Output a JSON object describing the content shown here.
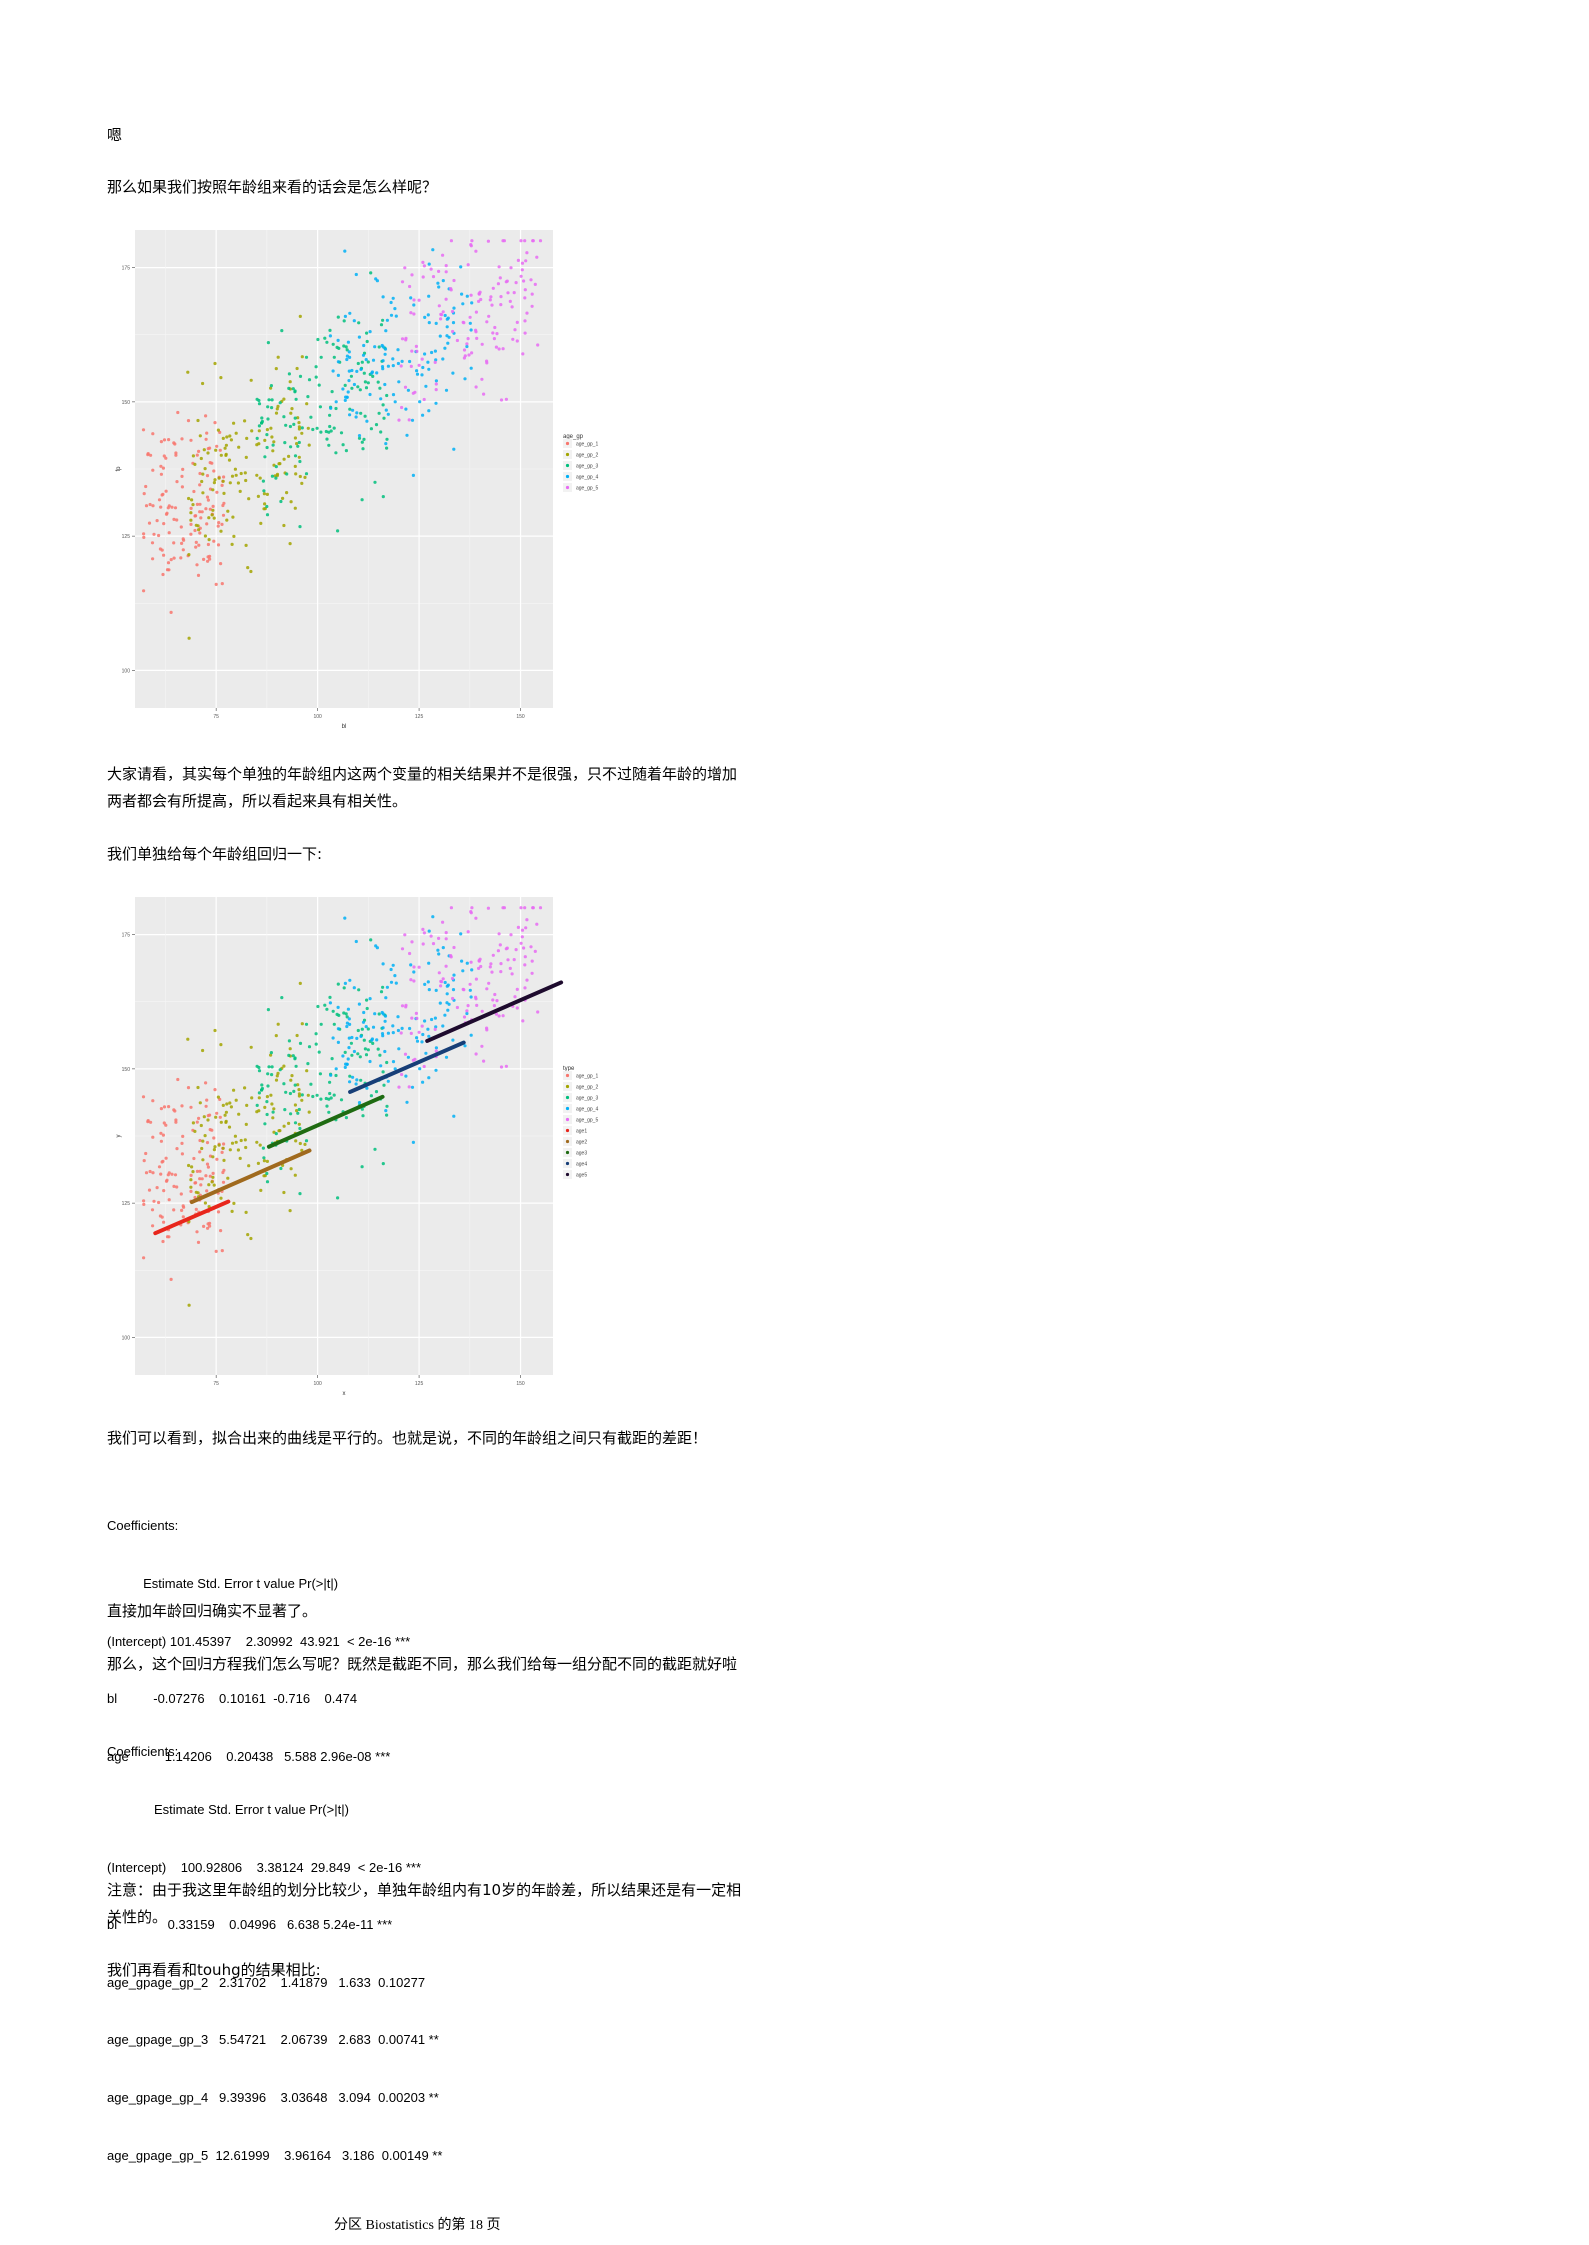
{
  "paragraphs": {
    "p1": "嗯",
    "p2": "那么如果我们按照年龄组来看的话会是怎么样呢？",
    "p3_line1": "大家请看，其实每个单独的年龄组内这两个变量的相关结果并不是很强，只不过随着年龄的增加",
    "p3_line2": "两者都会有所提高，所以看起来具有相关性。",
    "p4": "我们单独给每个年龄组回归一下:",
    "p5": "我们可以看到，拟合出来的曲线是平行的。也就是说，不同的年龄组之间只有截距的差距！",
    "p6": "直接加年龄回归确实不显著了。",
    "p7": "那么，这个回归方程我们怎么写呢？既然是截距不同，那么我们给每一组分配不同的截距就好啦",
    "p8_line1": "注意：由于我这里年龄组的划分比较少，单独年龄组内有10岁的年龄差，所以结果还是有一定相",
    "p8_line2": "关性的。",
    "p9": "我们再看看和touhg的结果相比:"
  },
  "coef1": [
    "Coefficients:",
    "          Estimate Std. Error t value Pr(>|t|)",
    "(Intercept) 101.45397    2.30992  43.921  < 2e-16 ***",
    "bl          -0.07276    0.10161  -0.716    0.474",
    "age          1.14206    0.20438   5.588 2.96e-08 ***"
  ],
  "coef2": [
    "Coefficients:",
    "             Estimate Std. Error t value Pr(>|t|)",
    "(Intercept)    100.92806    3.38124  29.849  < 2e-16 ***",
    "bl              0.33159    0.04996   6.638 5.24e-11 ***",
    "age_gpage_gp_2   2.31702    1.41879   1.633  0.10277",
    "age_gpage_gp_3   5.54721    2.06739   2.683  0.00741 **",
    "age_gpage_gp_4   9.39396    3.03648   3.094  0.00203 **",
    "age_gpage_gp_5  12.61999    3.96164   3.186  0.00149 **"
  ],
  "footer": "分区 Biostatistics 的第 18 页",
  "chart_data": [
    {
      "type": "scatter",
      "xlabel": "bl",
      "ylabel": "fp",
      "x_ticks": [
        "75",
        "100",
        "125",
        "150"
      ],
      "y_ticks": [
        "100",
        "125",
        "150",
        "175"
      ],
      "xlim": [
        55,
        158
      ],
      "ylim": [
        93,
        182
      ],
      "legend_title": "age_gp",
      "legend": [
        "age_gp_1",
        "age_gp_2",
        "age_gp_3",
        "age_gp_4",
        "age_gp_5"
      ],
      "legend_position": "right",
      "grid": true,
      "colors": [
        "#F8766D",
        "#A3A500",
        "#00BF7D",
        "#00B0F6",
        "#E76BF3"
      ],
      "groups": [
        {
          "name": "age_gp_1",
          "bl_range": [
            57,
            77
          ],
          "intercept": 101,
          "slope": 0.33
        },
        {
          "name": "age_gp_2",
          "bl_range": [
            68,
            98
          ],
          "intercept": 103.3,
          "slope": 0.33
        },
        {
          "name": "age_gp_3",
          "bl_range": [
            85,
            118
          ],
          "intercept": 106.5,
          "slope": 0.33
        },
        {
          "name": "age_gp_4",
          "bl_range": [
            103,
            138
          ],
          "intercept": 110.3,
          "slope": 0.33
        },
        {
          "name": "age_gp_5",
          "bl_range": [
            120,
            155
          ],
          "intercept": 113.5,
          "slope": 0.33
        }
      ]
    },
    {
      "type": "scatter",
      "xlabel": "x",
      "ylabel": "y",
      "x_ticks": [
        "75",
        "100",
        "125",
        "150"
      ],
      "y_ticks": [
        "100",
        "125",
        "150",
        "175"
      ],
      "xlim": [
        55,
        158
      ],
      "ylim": [
        93,
        182
      ],
      "legend_title": "type",
      "legend": [
        "age_gp_1",
        "age_gp_2",
        "age_gp_3",
        "age_gp_4",
        "age_gp_5",
        "age1",
        "age2",
        "age3",
        "age4",
        "age5"
      ],
      "legend_position": "right",
      "grid": true,
      "colors": [
        "#F8766D",
        "#A3A500",
        "#00BF7D",
        "#00B0F6",
        "#E76BF3"
      ],
      "line_colors": [
        "#E8261C",
        "#A06A1E",
        "#1F6B12",
        "#173E77",
        "#1E0B2E"
      ],
      "fit_lines": [
        {
          "name": "age1",
          "x": [
            60,
            78
          ],
          "y": [
            119.4,
            125.3
          ]
        },
        {
          "name": "age2",
          "x": [
            69,
            98
          ],
          "y": [
            125.2,
            134.8
          ]
        },
        {
          "name": "age3",
          "x": [
            88,
            116
          ],
          "y": [
            135.5,
            144.8
          ]
        },
        {
          "name": "age4",
          "x": [
            108,
            136
          ],
          "y": [
            145.7,
            154.9
          ]
        },
        {
          "name": "age5",
          "x": [
            127,
            160
          ],
          "y": [
            155.2,
            166.1
          ]
        }
      ]
    }
  ]
}
